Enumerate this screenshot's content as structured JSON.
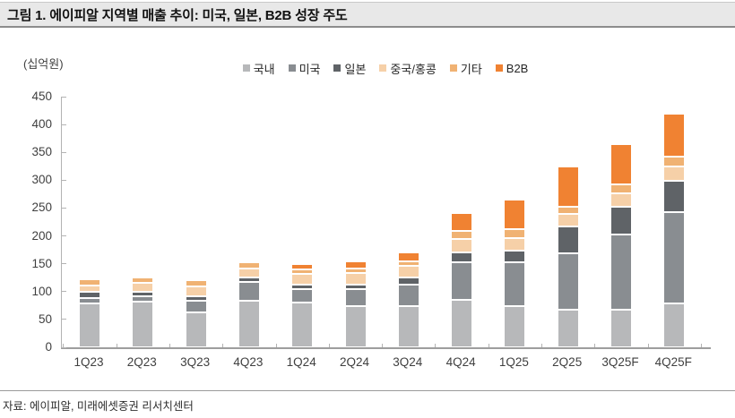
{
  "header": {
    "title": "그림 1. 에이피알 지역별 매출 추이: 미국, 일본, B2B 성장 주도"
  },
  "chart_data": {
    "type": "bar",
    "stacked": true,
    "title": "그림 1. 에이피알 지역별 매출 추이: 미국, 일본, B2B 성장 주도",
    "unit_label": "(십억원)",
    "xlabel": "",
    "ylabel": "십억원",
    "ylim": [
      0,
      450
    ],
    "ytick_step": 50,
    "grid": false,
    "legend_position": "top",
    "categories": [
      "1Q23",
      "2Q23",
      "3Q23",
      "4Q23",
      "1Q24",
      "2Q24",
      "3Q24",
      "4Q24",
      "1Q25",
      "2Q25",
      "3Q25F",
      "4Q25F"
    ],
    "series": [
      {
        "name": "국내",
        "color": "#b7b8ba",
        "values": [
          78,
          82,
          63,
          83,
          80,
          74,
          74,
          85,
          74,
          68,
          67,
          79
        ]
      },
      {
        "name": "미국",
        "color": "#898d91",
        "values": [
          10,
          9,
          20,
          35,
          24,
          30,
          38,
          68,
          78,
          100,
          135,
          164
        ]
      },
      {
        "name": "일본",
        "color": "#5f6367",
        "values": [
          11,
          8,
          8,
          7,
          9,
          9,
          13,
          18,
          21,
          49,
          51,
          56
        ]
      },
      {
        "name": "중국/홍콩",
        "color": "#f6d0a8",
        "values": [
          12,
          17,
          19,
          16,
          19,
          21,
          21,
          24,
          23,
          23,
          23,
          25
        ]
      },
      {
        "name": "기타",
        "color": "#f0b273",
        "values": [
          11,
          10,
          10,
          12,
          8,
          8,
          9,
          14,
          16,
          13,
          17,
          19
        ]
      },
      {
        "name": "B2B",
        "color": "#f08232",
        "values": [
          0,
          0,
          0,
          0,
          9,
          13,
          15,
          32,
          53,
          72,
          72,
          76
        ]
      }
    ],
    "totals": [
      122,
      126,
      120,
      153,
      149,
      155,
      170,
      241,
      265,
      325,
      365,
      419
    ]
  },
  "footer": {
    "source": "자료: 에이피알, 미래에셋증권 리서치센터"
  }
}
